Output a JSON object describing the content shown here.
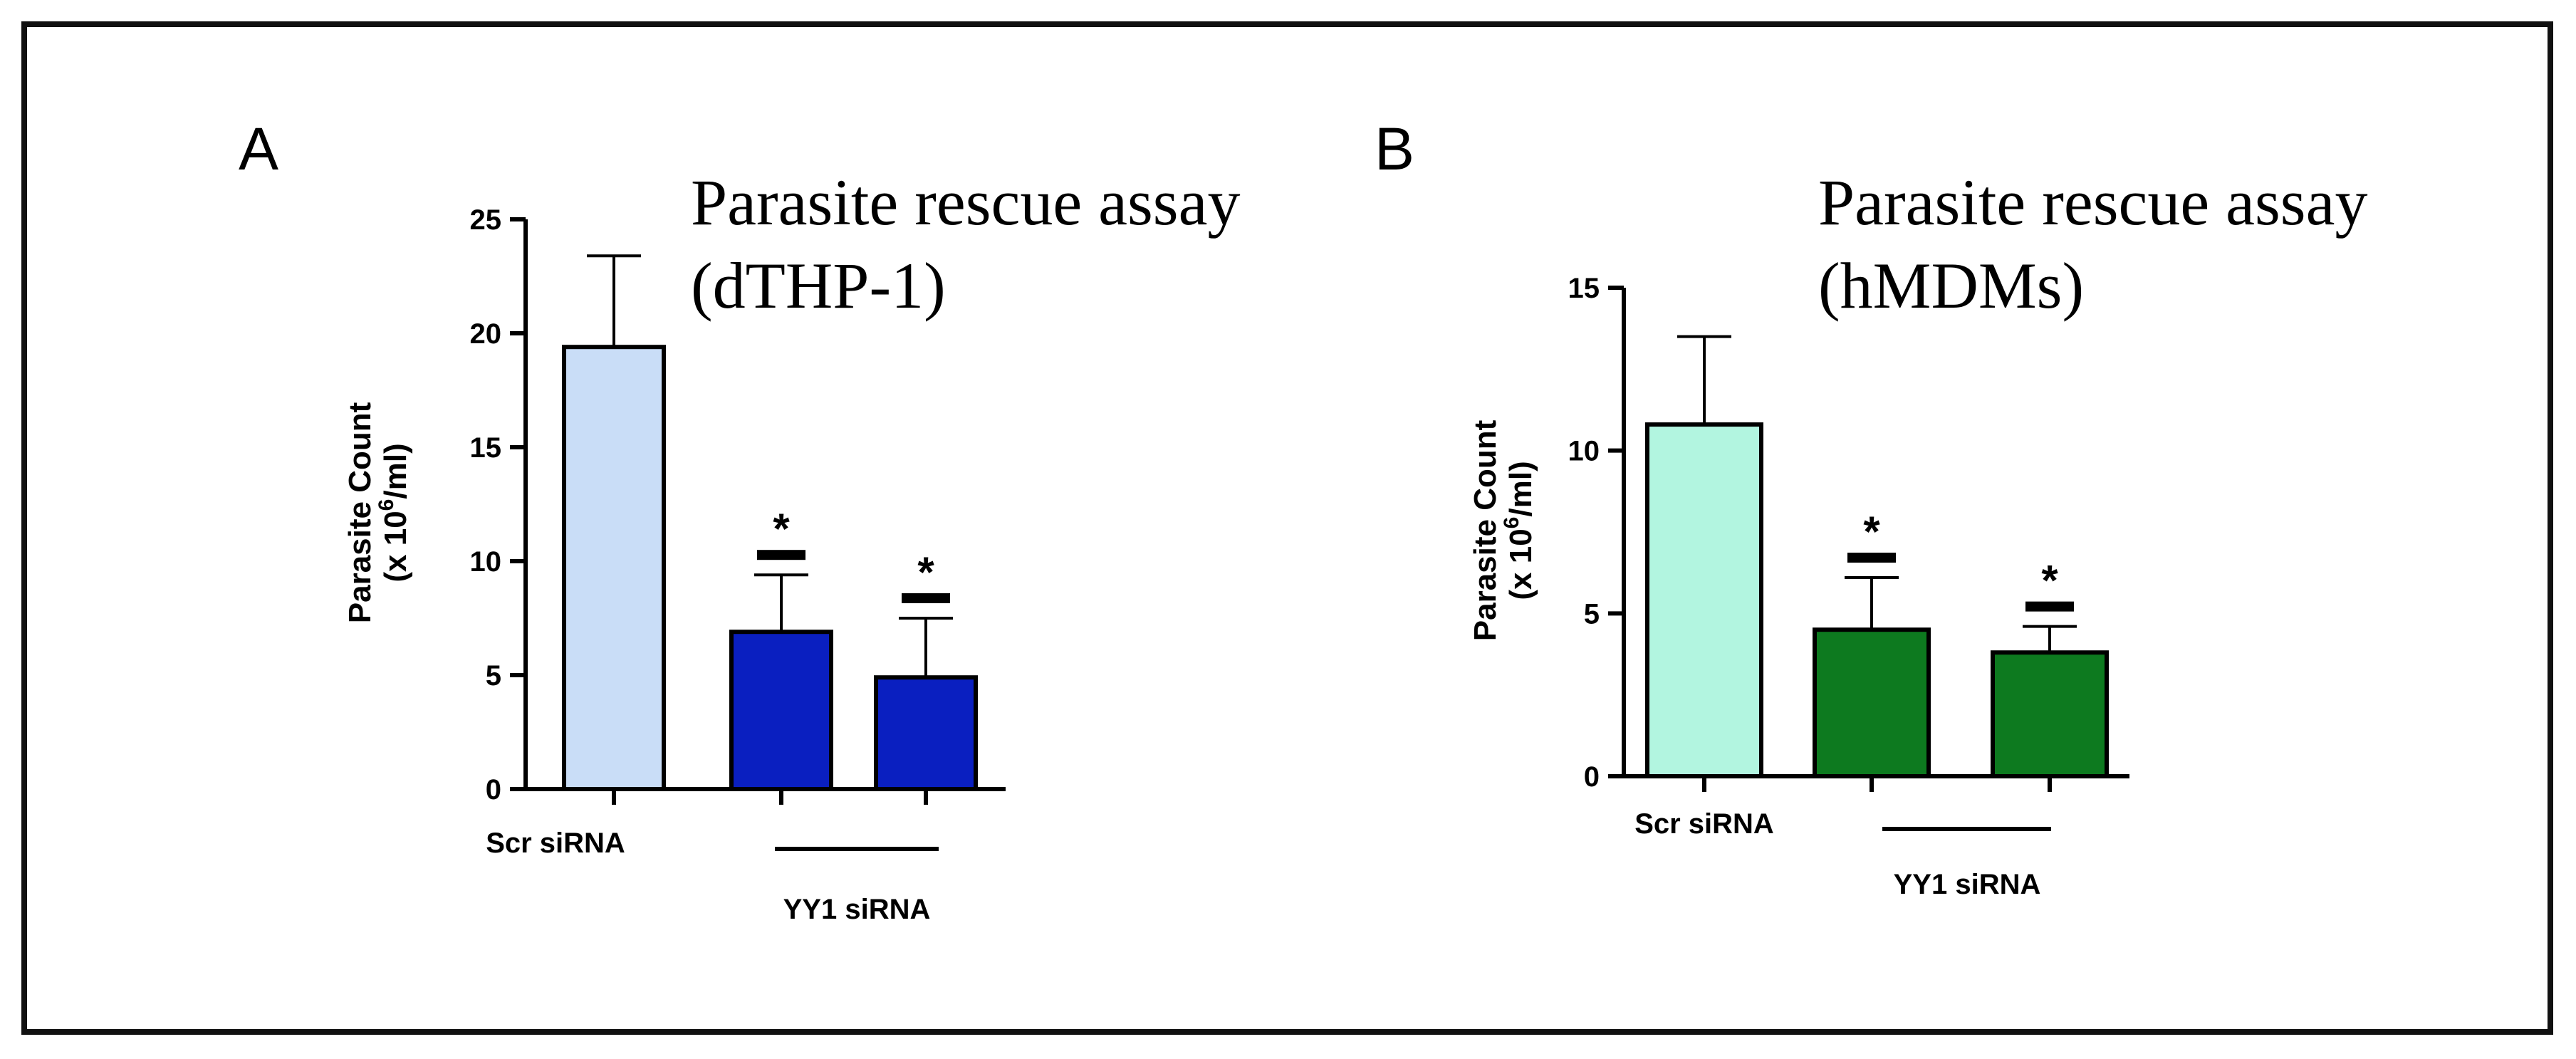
{
  "chart_data": [
    {
      "type": "bar",
      "panel_label": "A",
      "title": [
        "Parasite rescue assay",
        "(dTHP-1)"
      ],
      "ylabel": [
        "Parasite Count",
        "(x 10",
        "6",
        "/ml)"
      ],
      "ylim": [
        0,
        25
      ],
      "yticks": [
        0,
        5,
        10,
        15,
        20,
        25
      ],
      "categories": [
        "Scr siRNA",
        "YY1 siRNA",
        "YY1 siRNA"
      ],
      "category_labels": {
        "scr": "Scr siRNA",
        "group": "YY1 siRNA"
      },
      "values": [
        19.4,
        6.9,
        4.9
      ],
      "errors": [
        4.0,
        2.5,
        2.6
      ],
      "significance": [
        "",
        "*",
        "*"
      ],
      "colors": [
        "#c9ddf7",
        "#0a1fc0",
        "#0a1fc0"
      ]
    },
    {
      "type": "bar",
      "panel_label": "B",
      "title": [
        "Parasite rescue assay",
        "(hMDMs)"
      ],
      "ylabel": [
        "Parasite Count",
        "(x 10",
        "6",
        "/ml)"
      ],
      "ylim": [
        0,
        15
      ],
      "yticks": [
        0,
        5,
        10,
        15
      ],
      "categories": [
        "Scr siRNA",
        "YY1 siRNA",
        "YY1 siRNA"
      ],
      "category_labels": {
        "scr": "Scr siRNA",
        "group": "YY1 siRNA"
      },
      "values": [
        10.8,
        4.5,
        3.8
      ],
      "errors": [
        2.7,
        1.6,
        0.8
      ],
      "significance": [
        "",
        "*",
        "*"
      ],
      "colors": [
        "#b2f5e0",
        "#0d7a1f",
        "#0d7a1f"
      ]
    }
  ]
}
